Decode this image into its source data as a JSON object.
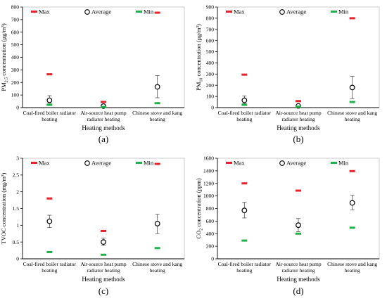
{
  "colors": {
    "max": "#e8232a",
    "min": "#1fb24a",
    "avg": "#000000",
    "axis": "#000000",
    "grid": "#d9d9d9"
  },
  "legend": {
    "max_label": "Max",
    "avg_label": "Average",
    "min_label": "Min"
  },
  "chart_data": [
    {
      "type": "scatter",
      "panel_label": "(a)",
      "ylabel": {
        "pre": "PM",
        "sub": "2.5",
        "post": " concentration (μg/m³)"
      },
      "xlabel": "Heating methods",
      "categories": [
        [
          "Coal-fired boiler radiator",
          "heating"
        ],
        [
          "Air-source heat pump",
          "radiator heating"
        ],
        [
          "Chinese stove and kang",
          "heating"
        ]
      ],
      "ylim": [
        0,
        800
      ],
      "yticks": [
        "0",
        "100",
        "200",
        "300",
        "400",
        "500",
        "600",
        "700",
        "800"
      ],
      "max": [
        265,
        45,
        755
      ],
      "avg": [
        58,
        12,
        165
      ],
      "err": [
        [
          35,
          95
        ],
        [
          5,
          20
        ],
        [
          78,
          255
        ]
      ],
      "min": [
        22,
        5,
        35
      ]
    },
    {
      "type": "scatter",
      "panel_label": "(b)",
      "ylabel": {
        "pre": "PM",
        "sub": "10",
        "post": " concentration (μg/m³)"
      },
      "xlabel": "Heating methods",
      "categories": [
        [
          "Coal-fired boiler radiator",
          "heating"
        ],
        [
          "Air-source heat pump",
          "radiator heating"
        ],
        [
          "Chinese stove and kang",
          "heating"
        ]
      ],
      "ylim": [
        0,
        900
      ],
      "yticks": [
        "0",
        "100",
        "200",
        "300",
        "400",
        "500",
        "600",
        "700",
        "800",
        "900"
      ],
      "max": [
        295,
        58,
        800
      ],
      "avg": [
        65,
        15,
        180
      ],
      "err": [
        [
          38,
          105
        ],
        [
          8,
          25
        ],
        [
          80,
          280
        ]
      ],
      "min": [
        25,
        8,
        50
      ]
    },
    {
      "type": "scatter",
      "panel_label": "(c)",
      "ylabel": {
        "pre": "TVOC concentration (mg/m³)",
        "sub": "",
        "post": ""
      },
      "xlabel": "Heating methods",
      "categories": [
        [
          "Coal-fired boiler radiator",
          "heating"
        ],
        [
          "Air-source heat pump",
          "radiator heating"
        ],
        [
          "Chinese stove and kang",
          "heating"
        ]
      ],
      "ylim": [
        0,
        3
      ],
      "yticks": [
        "0",
        "0.5",
        "1",
        "1.5",
        "2",
        "2.5",
        "3"
      ],
      "max": [
        1.8,
        0.83,
        2.83
      ],
      "avg": [
        1.12,
        0.5,
        1.05
      ],
      "err": [
        [
          0.93,
          1.3
        ],
        [
          0.4,
          0.62
        ],
        [
          0.75,
          1.33
        ]
      ],
      "min": [
        0.2,
        0.12,
        0.32
      ]
    },
    {
      "type": "scatter",
      "panel_label": "(d)",
      "ylabel": {
        "pre": "CO",
        "sub": "2",
        "post": " concentration (ppm)"
      },
      "xlabel": "Heating methods",
      "categories": [
        [
          "Coal-fired boiler radiator",
          "heating"
        ],
        [
          "Air-source heat pump",
          "radiator heating"
        ],
        [
          "Chinese stove and kang",
          "heating"
        ]
      ],
      "ylim": [
        0,
        1600
      ],
      "yticks": [
        "0",
        "200",
        "400",
        "600",
        "800",
        "1000",
        "1200",
        "1400",
        "1600"
      ],
      "max": [
        1200,
        1085,
        1395
      ],
      "avg": [
        770,
        535,
        890
      ],
      "err": [
        [
          650,
          900
        ],
        [
          430,
          640
        ],
        [
          780,
          1010
        ]
      ],
      "min": [
        290,
        400,
        495
      ]
    }
  ]
}
